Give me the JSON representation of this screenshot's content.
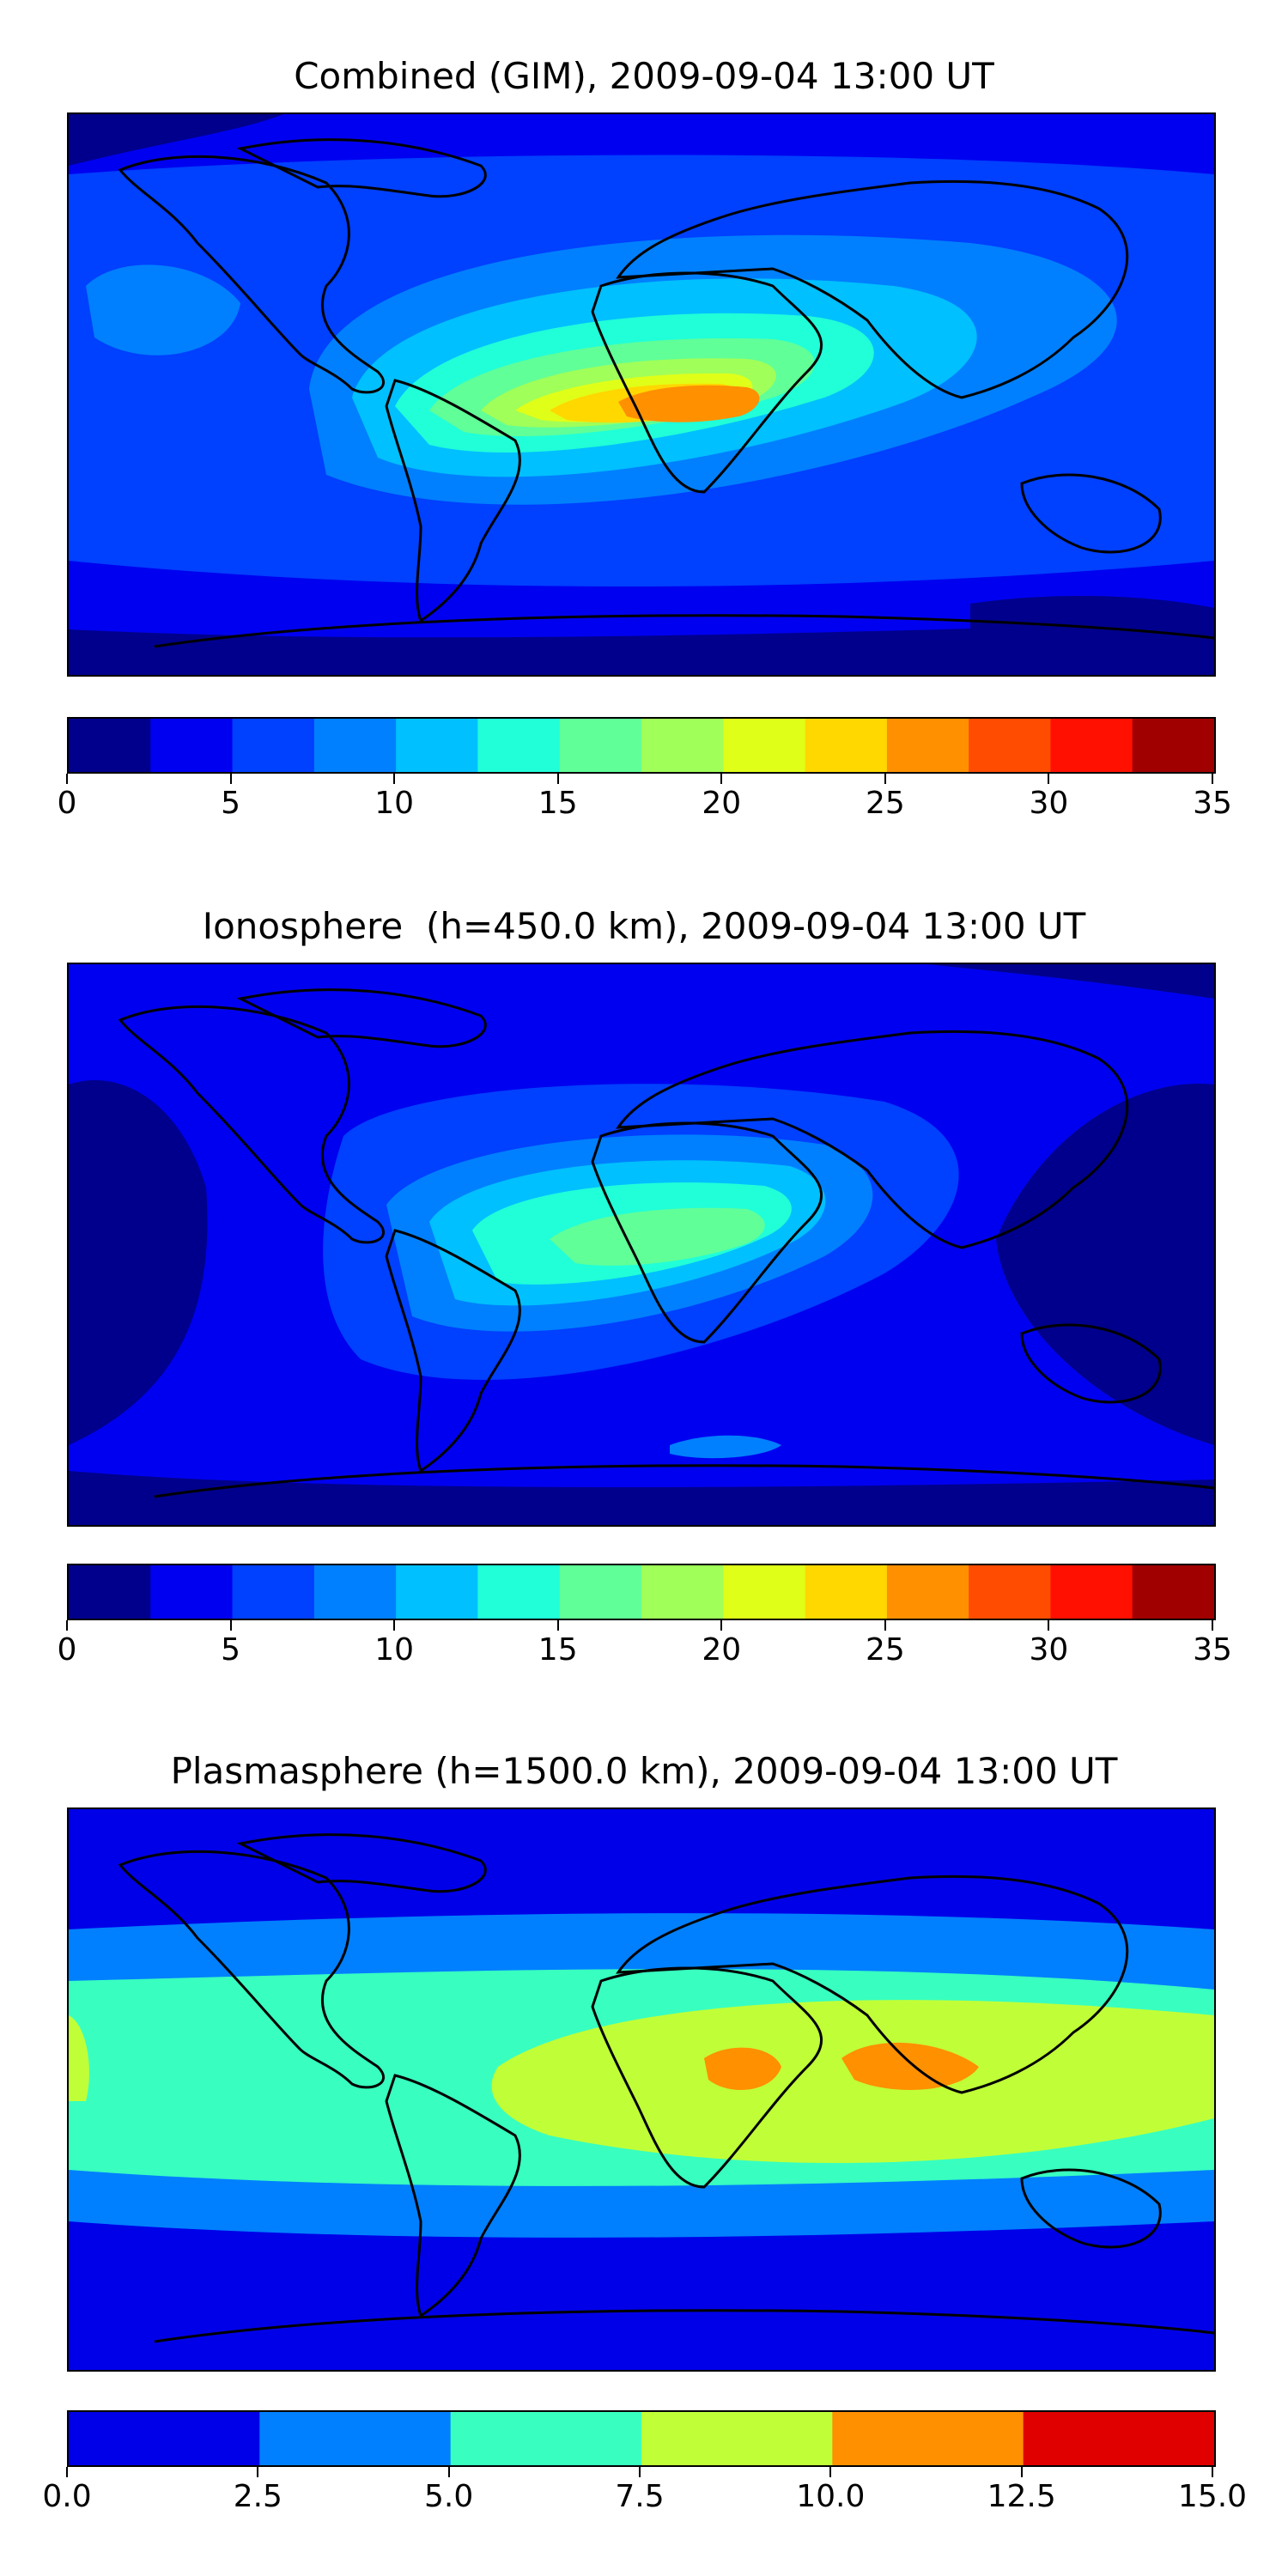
{
  "panels": [
    {
      "title": "Combined (GIM), 2009-09-04 13:00 UT",
      "colorbar": {
        "min": 0,
        "max": 35,
        "colors": [
          "#00008c",
          "#0000f0",
          "#0040ff",
          "#0080ff",
          "#00c0ff",
          "#20ffd8",
          "#60ff98",
          "#a0ff58",
          "#e0ff18",
          "#ffd800",
          "#ff9000",
          "#ff4c00",
          "#ff1000",
          "#a00000"
        ],
        "tick_labels": [
          "0",
          "5",
          "10",
          "15",
          "20",
          "25",
          "30",
          "35"
        ]
      }
    },
    {
      "title": "Ionosphere  (h=450.0 km), 2009-09-04 13:00 UT",
      "colorbar": {
        "min": 0,
        "max": 35,
        "colors": [
          "#00008c",
          "#0000f0",
          "#0040ff",
          "#0080ff",
          "#00c0ff",
          "#20ffd8",
          "#60ff98",
          "#a0ff58",
          "#e0ff18",
          "#ffd800",
          "#ff9000",
          "#ff4c00",
          "#ff1000",
          "#a00000"
        ],
        "tick_labels": [
          "0",
          "5",
          "10",
          "15",
          "20",
          "25",
          "30",
          "35"
        ]
      }
    },
    {
      "title": "Plasmasphere (h=1500.0 km), 2009-09-04 13:00 UT",
      "colorbar": {
        "min": 0,
        "max": 15,
        "colors": [
          "#0000e8",
          "#0080ff",
          "#38ffc0",
          "#c0ff38",
          "#ff9000",
          "#e00000"
        ],
        "tick_labels": [
          "0.0",
          "2.5",
          "5.0",
          "7.5",
          "10.0",
          "12.5",
          "15.0"
        ]
      }
    }
  ],
  "colors": {
    "coastline": "#000000"
  }
}
